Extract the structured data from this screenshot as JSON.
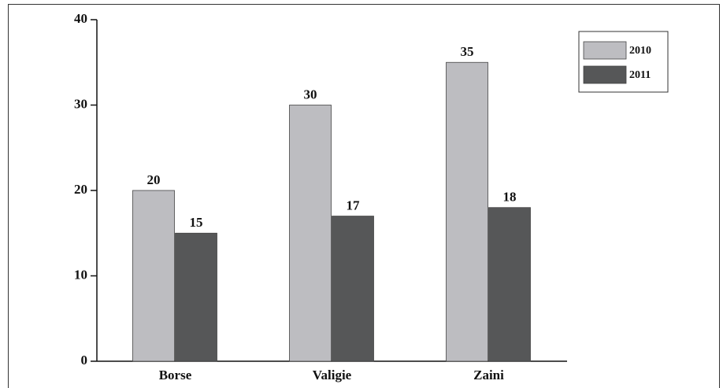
{
  "chart_data": {
    "type": "bar",
    "categories": [
      "Borse",
      "Valigie",
      "Zaini"
    ],
    "series": [
      {
        "name": "2010",
        "color": "#bdbdc1",
        "values": [
          20,
          30,
          35
        ]
      },
      {
        "name": "2011",
        "color": "#565758",
        "values": [
          15,
          17,
          18
        ]
      }
    ],
    "ylim": [
      0,
      40
    ],
    "yticks": [
      0,
      10,
      20,
      30,
      40
    ],
    "grid": false,
    "legend": "top-right"
  }
}
